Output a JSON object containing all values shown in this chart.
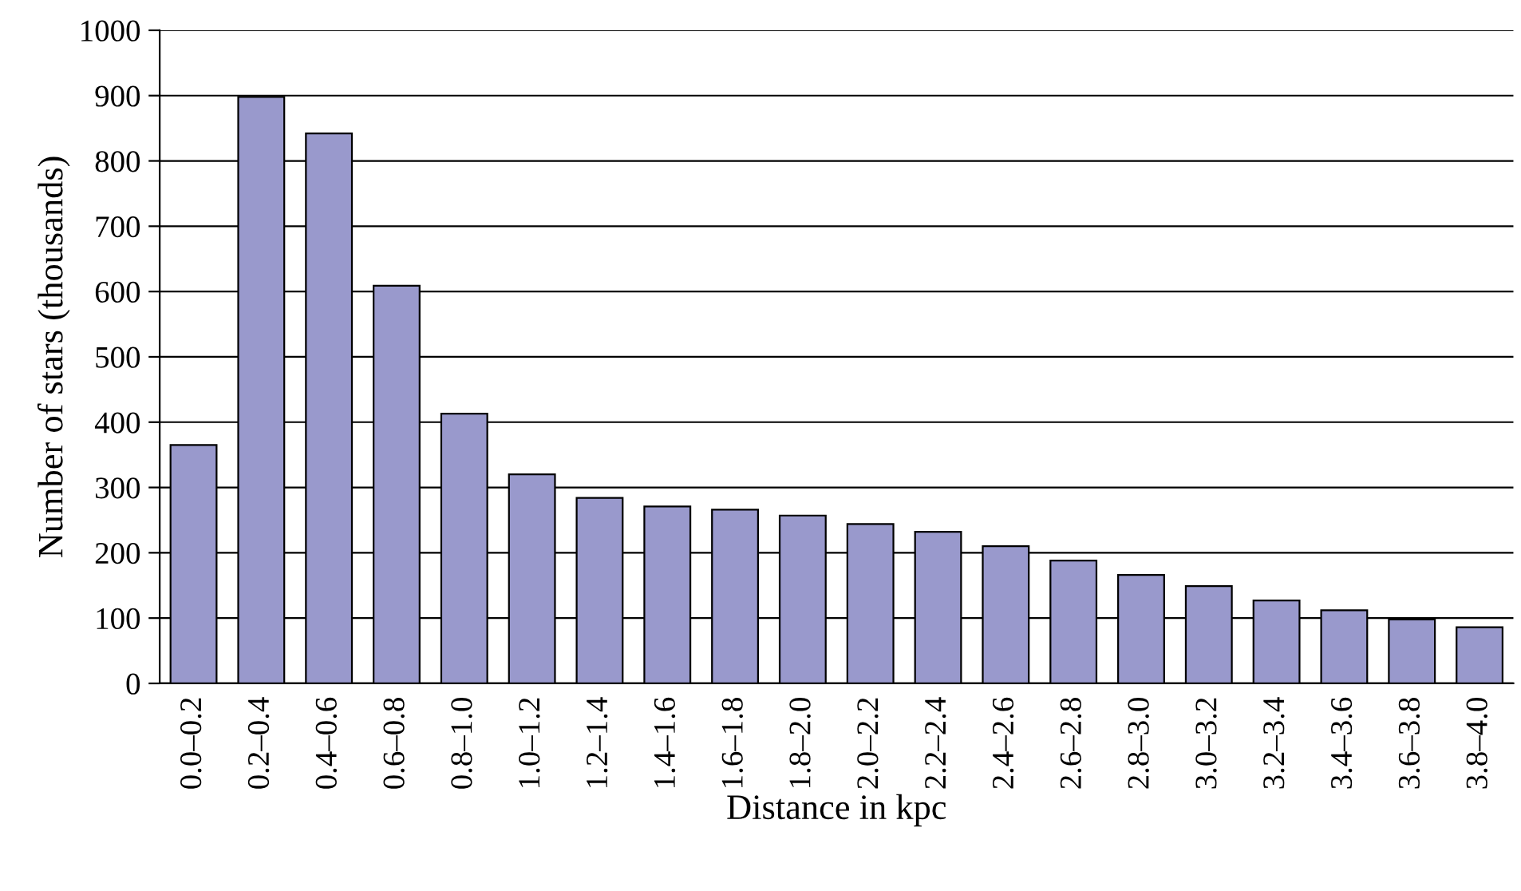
{
  "chart_data": {
    "type": "bar",
    "xlabel": "Distance in kpc",
    "ylabel": "Number of stars (thousands)",
    "categories": [
      "0.0–0.2",
      "0.2–0.4",
      "0.4–0.6",
      "0.6–0.8",
      "0.8–1.0",
      "1.0–1.2",
      "1.2–1.4",
      "1.4–1.6",
      "1.6–1.8",
      "1.8–2.0",
      "2.0–2.2",
      "2.2–2.4",
      "2.4–2.6",
      "2.6–2.8",
      "2.8–3.0",
      "3.0–3.2",
      "3.2–3.4",
      "3.4–3.6",
      "3.6–3.8",
      "3.8–4.0"
    ],
    "values": [
      365,
      898,
      842,
      609,
      413,
      320,
      284,
      271,
      266,
      257,
      244,
      232,
      210,
      188,
      166,
      149,
      127,
      112,
      98,
      86
    ],
    "color": "#9999cc",
    "ylim": [
      0,
      1000
    ],
    "yticks": [
      0,
      100,
      200,
      300,
      400,
      500,
      600,
      700,
      800,
      900,
      1000
    ],
    "grid": "y",
    "legend": false
  }
}
